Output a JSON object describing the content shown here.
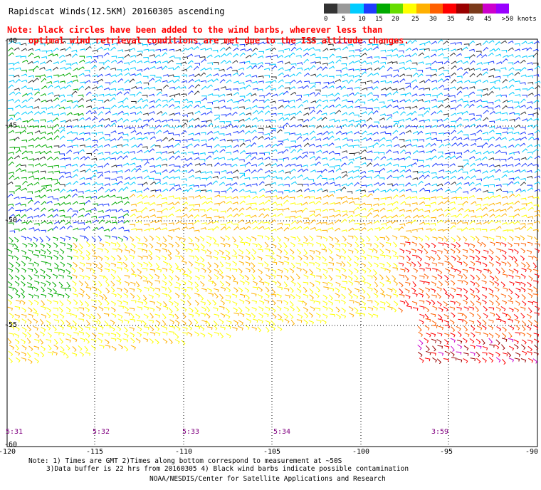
{
  "title": "Rapidscat Winds(12.5KM) 20160305 ascending",
  "note": {
    "line1": "Note: black circles have been added to the wind barbs, wherever less than",
    "line2": "optimal wind retrieval conditions are met due to the ISS altitude changes."
  },
  "colorbar": {
    "colors": [
      "#333333",
      "#999999",
      "#00ccff",
      "#1e3cff",
      "#00aa00",
      "#66dd00",
      "#ffff00",
      "#ffb000",
      "#ff6000",
      "#ff0000",
      "#990000",
      "#7a3a1a",
      "#cc00cc",
      "#9900ff"
    ],
    "tick_labels": [
      "0",
      "5",
      "10",
      "15",
      "20",
      "25",
      "30",
      "35",
      "40",
      "45",
      ">50 knots"
    ]
  },
  "map": {
    "lat_labels": [
      "-40",
      "-45",
      "-50",
      "-55",
      "-60"
    ],
    "lon_labels": [
      "-120",
      "-115",
      "-110",
      "-105",
      "-100",
      "-95",
      "-90"
    ],
    "time_labels": [
      "5:31",
      "5:32",
      "5:33",
      "5:34",
      "3:59"
    ]
  },
  "footer": {
    "line1": "Note: 1) Times are GMT 2)Times along bottom correspond to measurement at ~50S",
    "line2": "3)Data buffer is 22 hrs from 20160305 4) Black wind barbs indicate possible contamination",
    "line3": "NOAA/NESDIS/Center for Satellite Applications and Research"
  }
}
